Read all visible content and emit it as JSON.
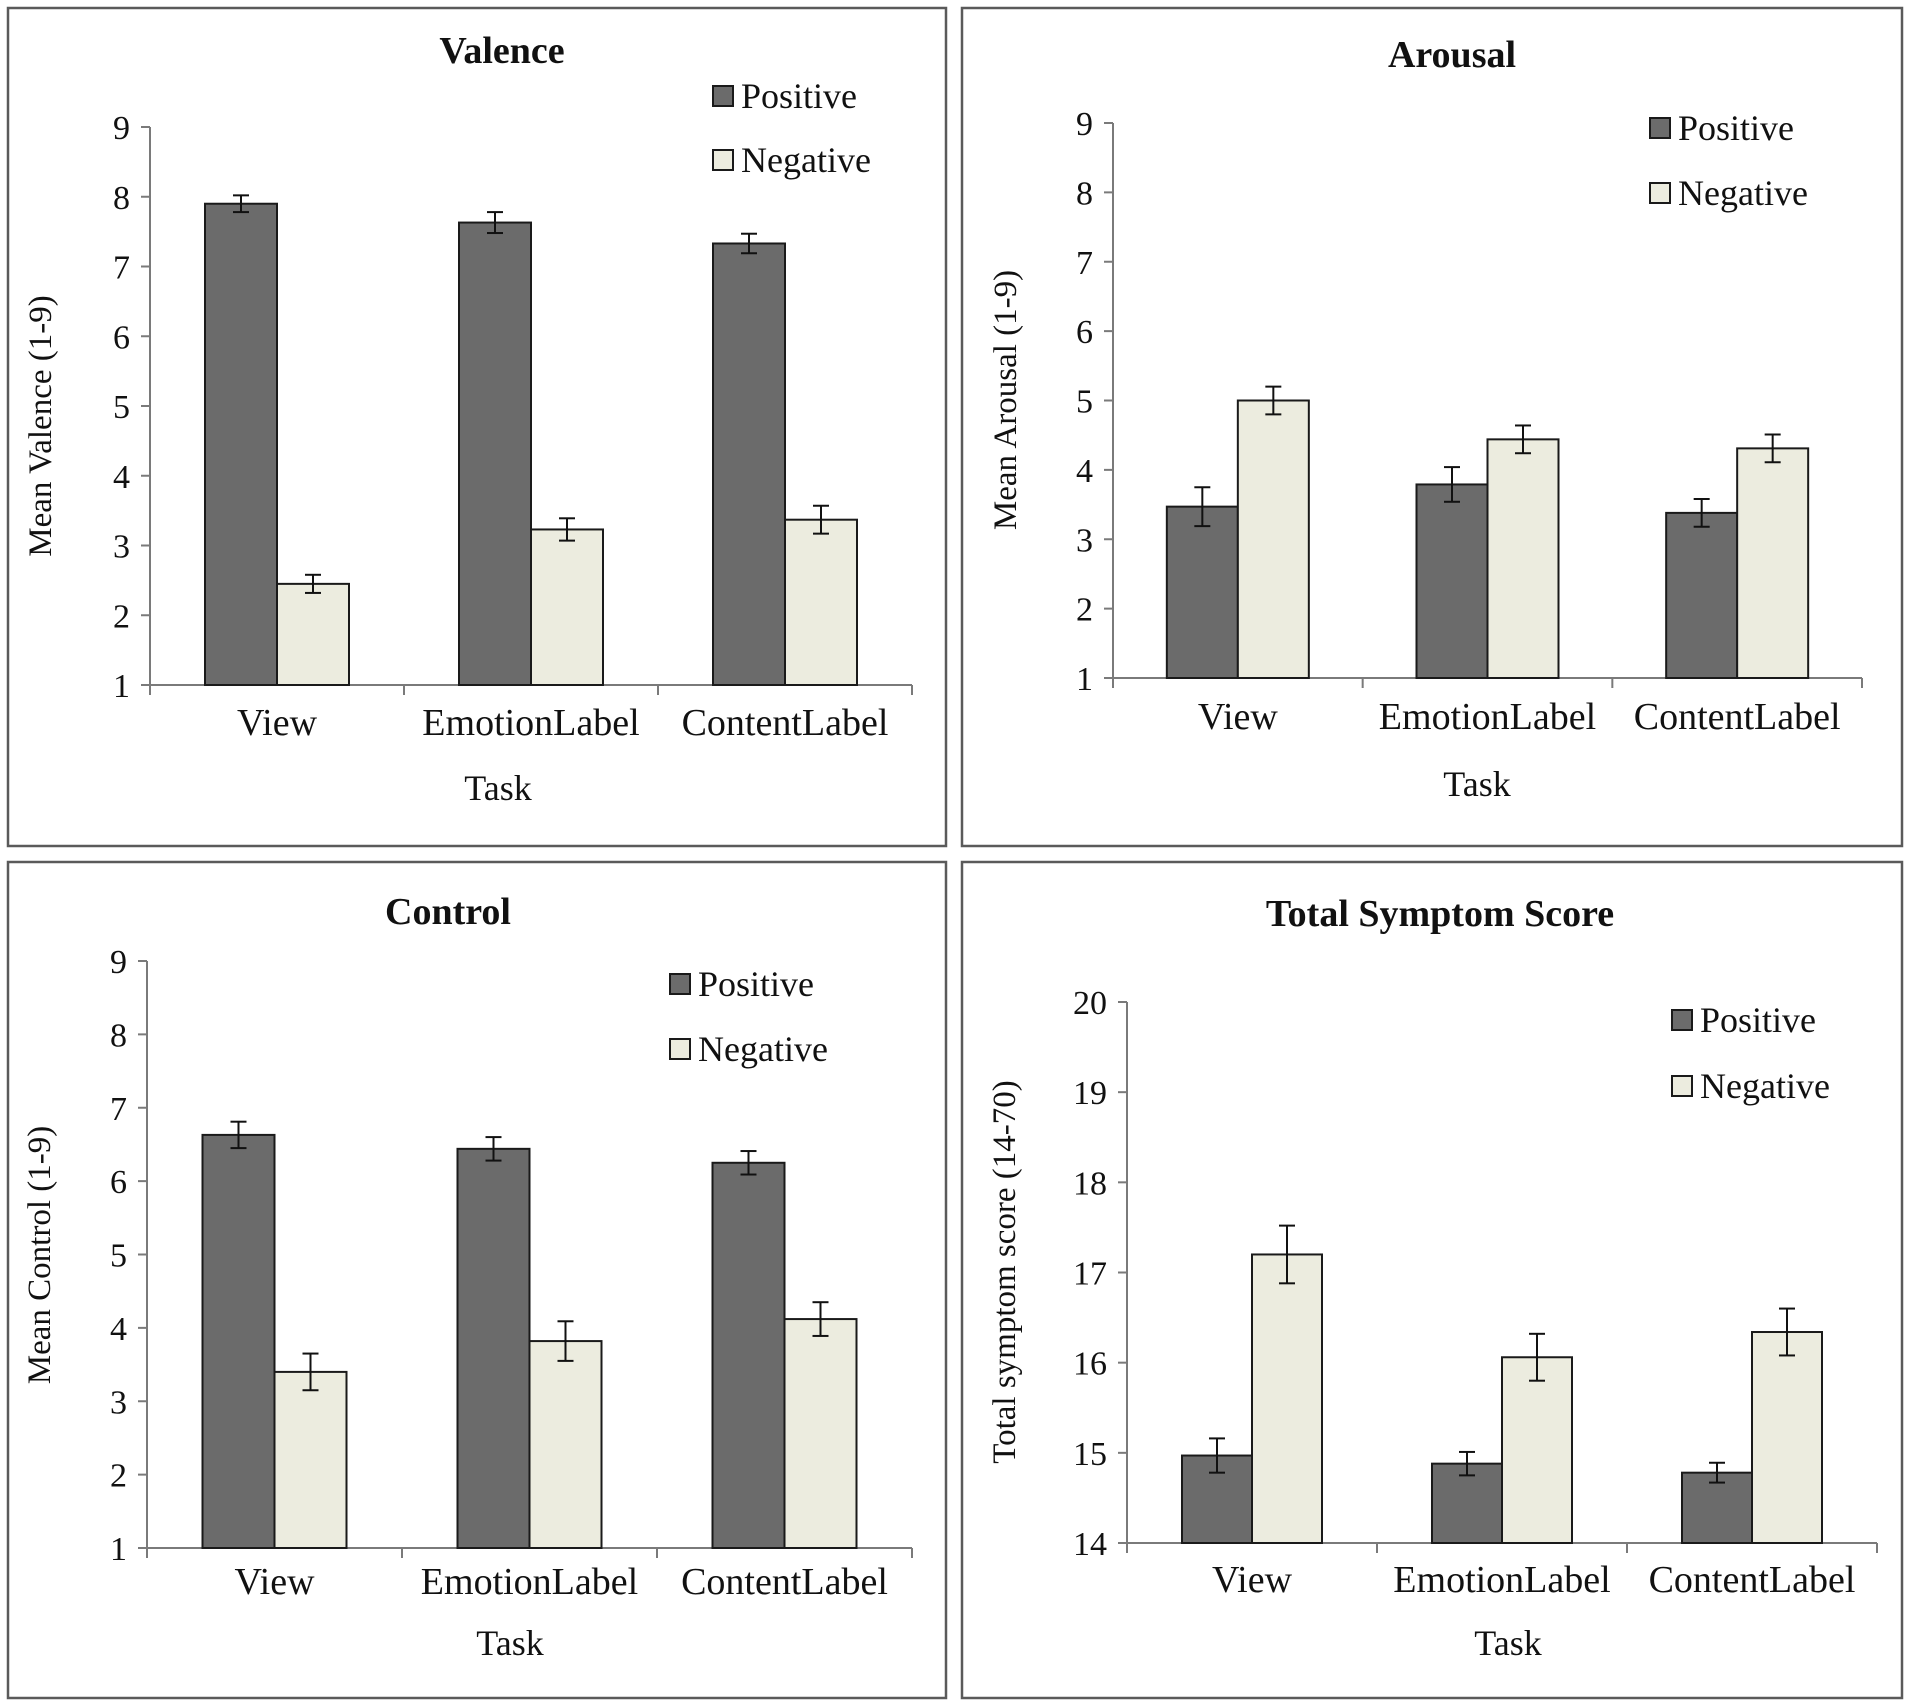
{
  "colors": {
    "positive": "#6b6b6b",
    "negative": "#ececdf",
    "frame": "#5a5a5a",
    "axis": "#7a7a7a"
  },
  "chart_data": [
    {
      "type": "bar",
      "title": "Valence",
      "xlabel": "Task",
      "ylabel": "Mean Valence (1-9)",
      "categories": [
        "View",
        "EmotionLabel",
        "ContentLabel"
      ],
      "ylim": [
        1,
        9
      ],
      "yticks": [
        "1",
        "2",
        "3",
        "4",
        "5",
        "6",
        "7",
        "8",
        "9"
      ],
      "legend": {
        "position": "top-right",
        "entries": [
          "Positive",
          "Negative"
        ]
      },
      "series": [
        {
          "name": "Positive",
          "values": [
            7.9,
            7.63,
            7.33
          ],
          "errors": [
            0.12,
            0.15,
            0.14
          ]
        },
        {
          "name": "Negative",
          "values": [
            2.45,
            3.23,
            3.37
          ],
          "errors": [
            0.13,
            0.16,
            0.2
          ]
        }
      ]
    },
    {
      "type": "bar",
      "title": "Arousal",
      "xlabel": "Task",
      "ylabel": "Mean Arousal  (1-9)",
      "categories": [
        "View",
        "EmotionLabel",
        "ContentLabel"
      ],
      "ylim": [
        1,
        9
      ],
      "yticks": [
        "1",
        "2",
        "3",
        "4",
        "5",
        "6",
        "7",
        "8",
        "9"
      ],
      "legend": {
        "position": "top-right",
        "entries": [
          "Positive",
          "Negative"
        ]
      },
      "series": [
        {
          "name": "Positive",
          "values": [
            3.47,
            3.79,
            3.38
          ],
          "errors": [
            0.28,
            0.25,
            0.2
          ]
        },
        {
          "name": "Negative",
          "values": [
            5.0,
            4.44,
            4.31
          ],
          "errors": [
            0.2,
            0.2,
            0.2
          ]
        }
      ]
    },
    {
      "type": "bar",
      "title": "Control",
      "xlabel": "Task",
      "ylabel": "Mean  Control  (1-9)",
      "categories": [
        "View",
        "EmotionLabel",
        "ContentLabel"
      ],
      "ylim": [
        1,
        9
      ],
      "yticks": [
        "1",
        "2",
        "3",
        "4",
        "5",
        "6",
        "7",
        "8",
        "9"
      ],
      "legend": {
        "position": "top-right",
        "entries": [
          "Positive",
          "Negative"
        ]
      },
      "series": [
        {
          "name": "Positive",
          "values": [
            6.63,
            6.44,
            6.25
          ],
          "errors": [
            0.18,
            0.16,
            0.16
          ]
        },
        {
          "name": "Negative",
          "values": [
            3.4,
            3.82,
            4.12
          ],
          "errors": [
            0.25,
            0.27,
            0.23
          ]
        }
      ]
    },
    {
      "type": "bar",
      "title": "Total Symptom Score",
      "xlabel": "Task",
      "ylabel": "Total symptom score (14-70)",
      "categories": [
        "View",
        "EmotionLabel",
        "ContentLabel"
      ],
      "ylim": [
        14,
        20
      ],
      "yticks": [
        "14",
        "15",
        "16",
        "17",
        "18",
        "19",
        "20"
      ],
      "legend": {
        "position": "top-right",
        "entries": [
          "Positive",
          "Negative"
        ]
      },
      "series": [
        {
          "name": "Positive",
          "values": [
            14.97,
            14.88,
            14.78
          ],
          "errors": [
            0.19,
            0.13,
            0.11
          ]
        },
        {
          "name": "Negative",
          "values": [
            17.2,
            16.06,
            16.34
          ],
          "errors": [
            0.32,
            0.26,
            0.26
          ]
        }
      ]
    }
  ]
}
